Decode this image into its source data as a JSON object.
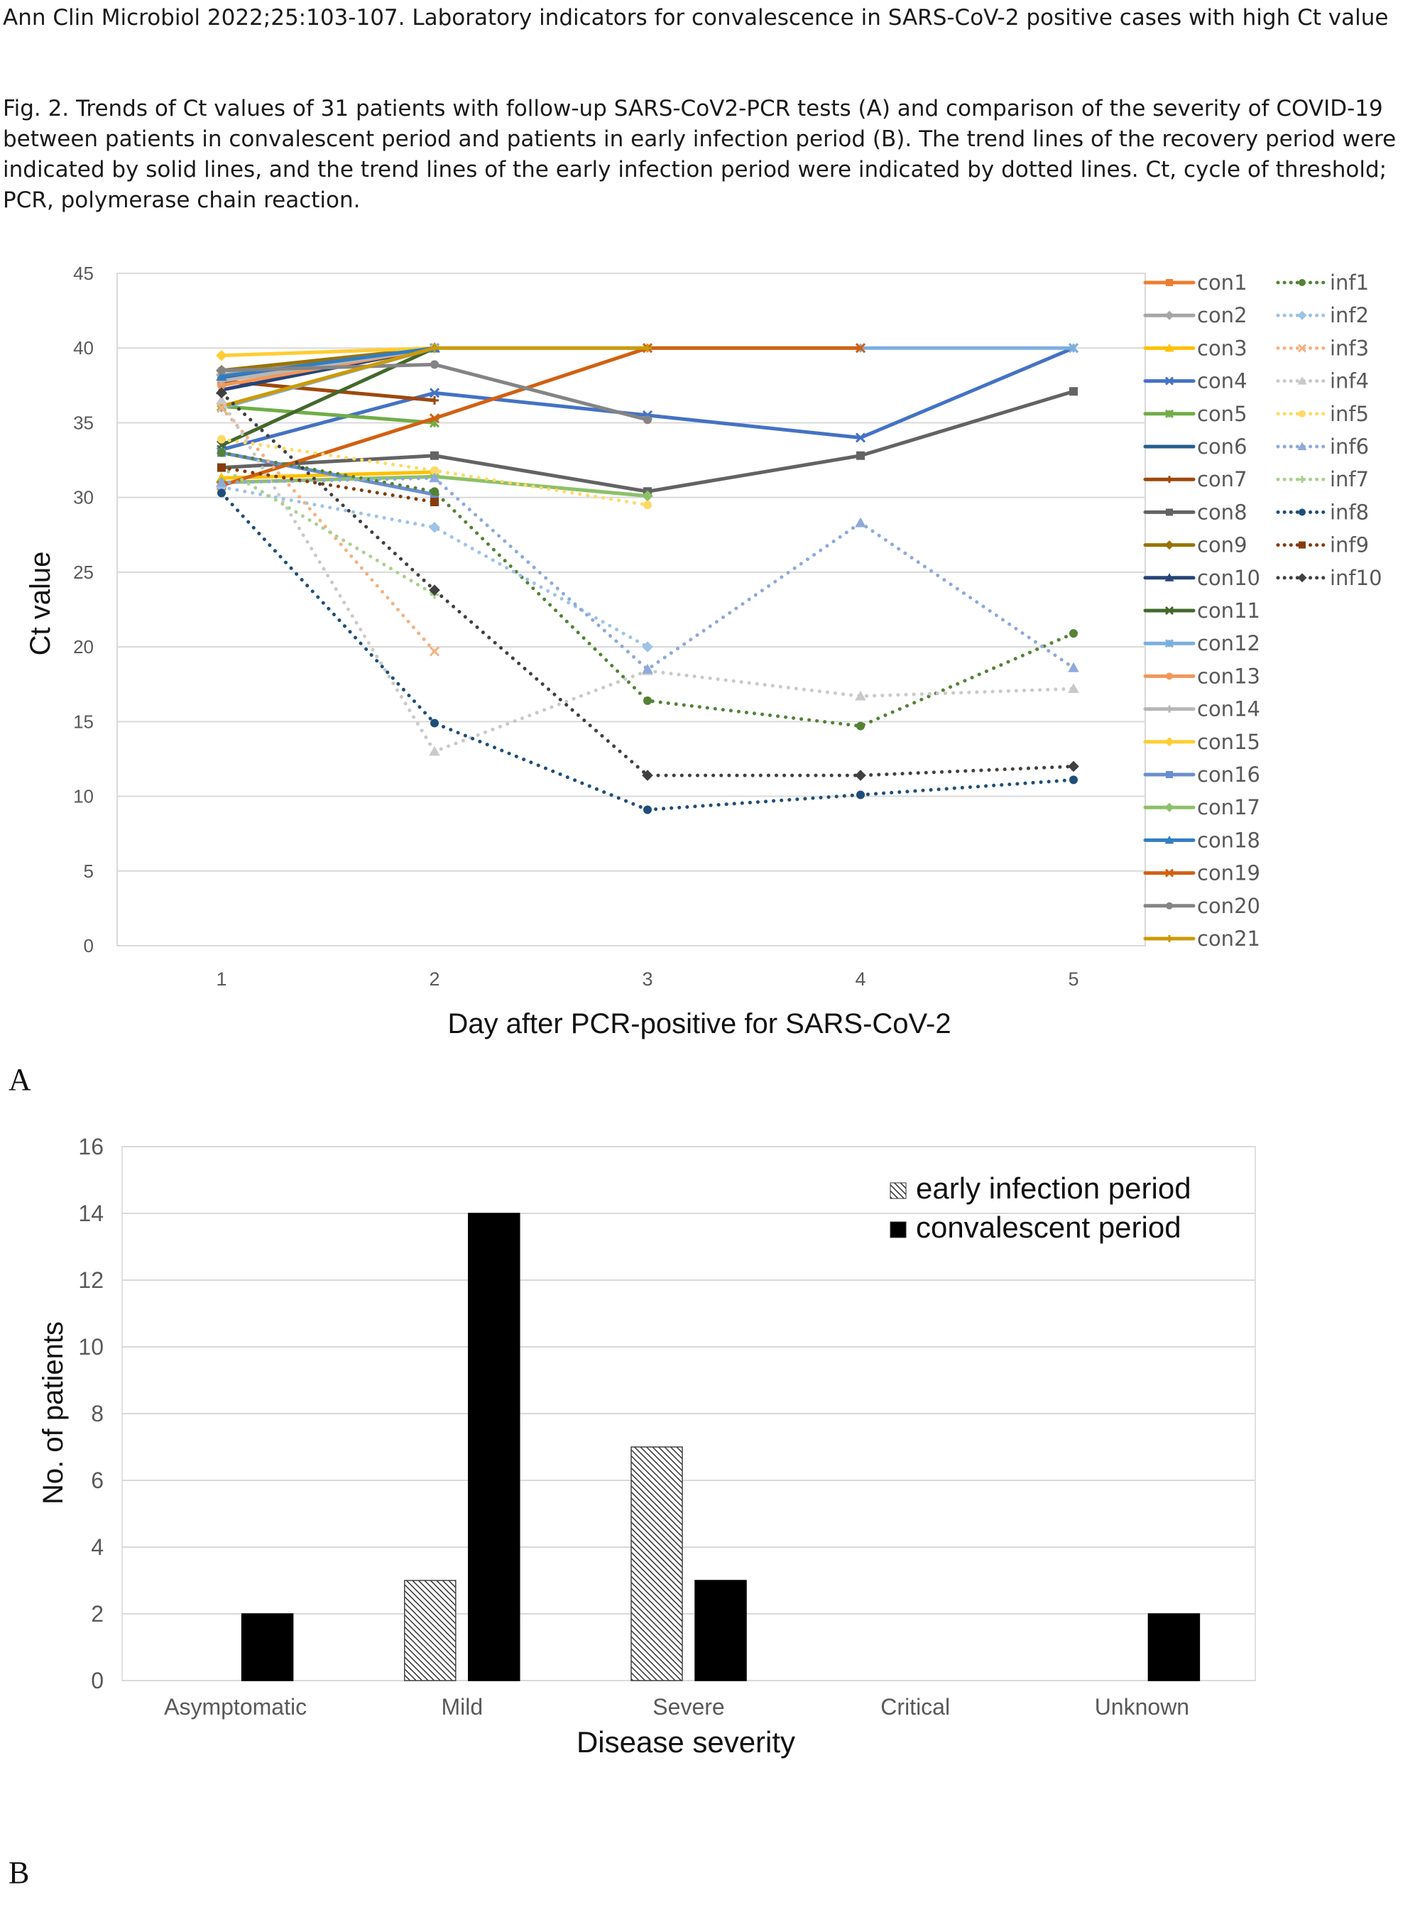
{
  "header": {
    "journal_line": "Ann Clin Microbiol 2022;25:103-107. Laboratory indicators for convalescence in SARS-CoV-2 positive cases with high Ct value",
    "figure_caption": "Fig. 2. Trends of Ct values of 31 patients with follow-up SARS-CoV2-PCR tests (A) and comparison of the severity of COVID-19 between patients in convalescent period and patients in early infection period (B). The trend lines of the recovery period were indicated by solid lines, and the trend lines of the early infection period were indicated by dotted lines. Ct, cycle of threshold; PCR, polymerase chain reaction."
  },
  "panels": {
    "a_label": "A",
    "b_label": "B"
  },
  "chart_data": [
    {
      "type": "line",
      "panel": "A",
      "title": "",
      "xlabel": "Day after PCR-positive for SARS-CoV-2",
      "ylabel": "Ct  value",
      "x": [
        1,
        2,
        3,
        4,
        5
      ],
      "x_tick_labels": [
        "1",
        "2",
        "3",
        "4",
        "5"
      ],
      "ylim": [
        0,
        45
      ],
      "y_ticks": [
        0,
        5,
        10,
        15,
        20,
        25,
        30,
        35,
        40,
        45
      ],
      "grid": true,
      "legend_position": "right",
      "series": [
        {
          "name": "con1",
          "style": "solid",
          "marker": "square",
          "color": "#ED7D31",
          "values": [
            37.8,
            40,
            null,
            null,
            null
          ]
        },
        {
          "name": "con2",
          "style": "solid",
          "marker": "diamond",
          "color": "#A5A5A5",
          "values": [
            38.2,
            40,
            null,
            null,
            null
          ]
        },
        {
          "name": "con3",
          "style": "solid",
          "marker": "triangle",
          "color": "#FFC000",
          "values": [
            31.3,
            31.7,
            null,
            null,
            null
          ]
        },
        {
          "name": "con4",
          "style": "solid",
          "marker": "x",
          "color": "#4472C4",
          "values": [
            33.2,
            37.0,
            35.5,
            34.0,
            40
          ]
        },
        {
          "name": "con5",
          "style": "solid",
          "marker": "star",
          "color": "#70AD47",
          "values": [
            36.1,
            35.0,
            null,
            null,
            null
          ]
        },
        {
          "name": "con6",
          "style": "solid",
          "marker": "none",
          "color": "#255E91",
          "values": [
            38.0,
            40,
            null,
            null,
            null
          ]
        },
        {
          "name": "con7",
          "style": "solid",
          "marker": "plus",
          "color": "#9E480E",
          "values": [
            37.8,
            36.5,
            null,
            null,
            null
          ]
        },
        {
          "name": "con8",
          "style": "solid",
          "marker": "square",
          "color": "#636363",
          "values": [
            32.0,
            32.8,
            30.4,
            32.8,
            37.1
          ]
        },
        {
          "name": "con9",
          "style": "solid",
          "marker": "diamond",
          "color": "#997300",
          "values": [
            38.5,
            40,
            null,
            null,
            null
          ]
        },
        {
          "name": "con10",
          "style": "solid",
          "marker": "triangle",
          "color": "#264478",
          "values": [
            37.2,
            40,
            null,
            null,
            null
          ]
        },
        {
          "name": "con11",
          "style": "solid",
          "marker": "x",
          "color": "#43682B",
          "values": [
            33.5,
            40,
            null,
            null,
            null
          ]
        },
        {
          "name": "con12",
          "style": "solid",
          "marker": "star",
          "color": "#7CAFDD",
          "values": [
            36.0,
            40,
            40,
            40,
            40
          ]
        },
        {
          "name": "con13",
          "style": "solid",
          "marker": "circle",
          "color": "#F1975A",
          "values": [
            37.5,
            40,
            null,
            null,
            null
          ]
        },
        {
          "name": "con14",
          "style": "solid",
          "marker": "plus",
          "color": "#B7B7B7",
          "values": [
            37.8,
            40,
            null,
            null,
            null
          ]
        },
        {
          "name": "con15",
          "style": "solid",
          "marker": "diamond",
          "color": "#FFCD33",
          "values": [
            39.5,
            40,
            null,
            null,
            null
          ]
        },
        {
          "name": "con16",
          "style": "solid",
          "marker": "square",
          "color": "#698ED0",
          "values": [
            33.0,
            30.2,
            null,
            null,
            null
          ]
        },
        {
          "name": "con17",
          "style": "solid",
          "marker": "diamond",
          "color": "#8CC168",
          "values": [
            31.0,
            31.4,
            30.1,
            null,
            null
          ]
        },
        {
          "name": "con18",
          "style": "solid",
          "marker": "triangle",
          "color": "#327DC2",
          "values": [
            38.1,
            40,
            null,
            null,
            null
          ]
        },
        {
          "name": "con19",
          "style": "solid",
          "marker": "x",
          "color": "#D26012",
          "values": [
            30.8,
            35.3,
            40,
            40,
            null
          ]
        },
        {
          "name": "con20",
          "style": "solid",
          "marker": "circle",
          "color": "#848484",
          "values": [
            38.5,
            38.9,
            35.2,
            null,
            null
          ]
        },
        {
          "name": "con21",
          "style": "solid",
          "marker": "plus",
          "color": "#CC9A06",
          "values": [
            36.1,
            40,
            40,
            null,
            null
          ]
        },
        {
          "name": "inf1",
          "style": "dotted",
          "marker": "circle",
          "color": "#548235",
          "values": [
            33.0,
            30.4,
            16.4,
            14.7,
            20.9
          ]
        },
        {
          "name": "inf2",
          "style": "dotted",
          "marker": "diamond",
          "color": "#9DC3E6",
          "values": [
            30.7,
            28.0,
            20.0,
            null,
            null
          ]
        },
        {
          "name": "inf3",
          "style": "dotted",
          "marker": "x",
          "color": "#F4B183",
          "values": [
            36.0,
            19.7,
            null,
            null,
            null
          ]
        },
        {
          "name": "inf4",
          "style": "dotted",
          "marker": "triangle",
          "color": "#C9C9C9",
          "values": [
            36.5,
            13.0,
            18.4,
            16.7,
            17.2
          ]
        },
        {
          "name": "inf5",
          "style": "dotted",
          "marker": "circle",
          "color": "#FFD966",
          "values": [
            33.9,
            31.8,
            29.5,
            null,
            null
          ]
        },
        {
          "name": "inf6",
          "style": "dotted",
          "marker": "triangle",
          "color": "#8EA9DB",
          "values": [
            31.0,
            31.3,
            18.5,
            28.3,
            18.6
          ]
        },
        {
          "name": "inf7",
          "style": "dotted",
          "marker": "plus",
          "color": "#A9D18E",
          "values": [
            32.0,
            23.5,
            null,
            null,
            null
          ]
        },
        {
          "name": "inf8",
          "style": "dotted",
          "marker": "circle",
          "color": "#1F4E79",
          "values": [
            30.3,
            14.9,
            9.1,
            10.1,
            11.1
          ]
        },
        {
          "name": "inf9",
          "style": "dotted",
          "marker": "square",
          "color": "#843C0C",
          "values": [
            32.0,
            29.7,
            null,
            null,
            null
          ]
        },
        {
          "name": "inf10",
          "style": "dotted",
          "marker": "diamond",
          "color": "#404040",
          "values": [
            37.0,
            23.8,
            11.4,
            11.4,
            12.0
          ]
        }
      ]
    },
    {
      "type": "bar",
      "panel": "B",
      "title": "",
      "xlabel": "Disease severity",
      "ylabel": "No. of patients",
      "categories": [
        "Asymptomatic",
        "Mild",
        "Severe",
        "Critical",
        "Unknown"
      ],
      "ylim": [
        0,
        16
      ],
      "y_ticks": [
        0,
        2,
        4,
        6,
        8,
        10,
        12,
        14,
        16
      ],
      "grid": true,
      "legend_position": "top-right",
      "series": [
        {
          "name": "early infection period",
          "fill": "hatched",
          "color": "#555555",
          "values": [
            0,
            3,
            7,
            0,
            0
          ]
        },
        {
          "name": "convalescent period",
          "fill": "solid",
          "color": "#000000",
          "values": [
            2,
            14,
            3,
            0,
            2
          ]
        }
      ]
    }
  ]
}
